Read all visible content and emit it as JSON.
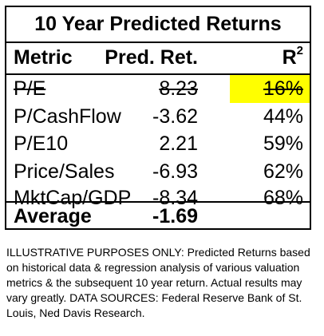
{
  "table": {
    "title": "10 Year Predicted Returns",
    "headers": {
      "metric": "Metric",
      "pred_ret": "Pred. Ret.",
      "r_base": "R",
      "r_sup": "2"
    },
    "rows": [
      {
        "metric": "P/E",
        "pred_ret": "8.23",
        "r2": "16%",
        "struck": true,
        "highlight": "#ffff00"
      },
      {
        "metric": "P/CashFlow",
        "pred_ret": "-3.62",
        "r2": "44%"
      },
      {
        "metric": "P/E10",
        "pred_ret": "2.21",
        "r2": "59%"
      },
      {
        "metric": "Price/Sales",
        "pred_ret": "-6.93",
        "r2": "62%"
      },
      {
        "metric": "MktCap/GDP",
        "pred_ret": "-8.34",
        "r2": "68%"
      }
    ],
    "average": {
      "label": "Average",
      "value": "-1.69"
    }
  },
  "footnote": "ILLUSTRATIVE PURPOSES ONLY: Predicted Returns based on historical data & regression analysis of various valuation metrics & the subsequent 10 year return. Actual results may vary greatly. DATA SOURCES: Federal Reserve Bank of St. Louis, Ned Davis Research."
}
